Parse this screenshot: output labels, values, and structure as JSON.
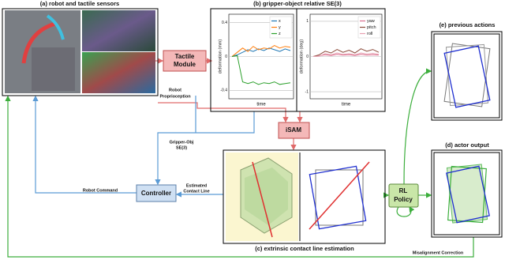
{
  "panels": {
    "a": {
      "title": "(a) robot and tactile sensors"
    },
    "b": {
      "title": "(b) gripper-object relative SE(3)"
    },
    "c": {
      "title": "(c) extrinsic contact line estimation"
    },
    "d": {
      "title": "(d) actor output"
    },
    "e": {
      "title": "(e) previous actions"
    }
  },
  "blocks": {
    "tactile_module": [
      "Tactile",
      "Module"
    ],
    "isam": "iSAM",
    "controller": "Controller",
    "rl_policy": [
      "RL",
      "Policy"
    ]
  },
  "edge_labels": {
    "robot_proprioception": [
      "Robot",
      "Proprioception"
    ],
    "gripper_obj": [
      "Gripper-Obj",
      "SE(3)"
    ],
    "estimated_contact_line": [
      "Estimated",
      "Contact Line"
    ],
    "robot_command": "Robot Command",
    "misalignment_correction": "Misalignment Correction"
  },
  "chart_data": [
    {
      "type": "line",
      "xlabel": "time",
      "ylabel": "deformation (mm)",
      "ylim": [
        -0.5,
        0.5
      ],
      "yticks": [
        0.4,
        0,
        -0.4
      ],
      "grid": true,
      "series": [
        {
          "name": "x",
          "color": "#1f77b4",
          "values": [
            0.0,
            0.02,
            0.05,
            0.08,
            0.06,
            0.09,
            0.07,
            0.1,
            0.08,
            0.06,
            0.09,
            0.07
          ]
        },
        {
          "name": "y",
          "color": "#ff7f0e",
          "values": [
            0.0,
            0.05,
            0.1,
            0.06,
            0.12,
            0.08,
            0.1,
            0.09,
            0.13,
            0.1,
            0.12,
            0.11
          ]
        },
        {
          "name": "z",
          "color": "#2ca02c",
          "values": [
            0.0,
            0.01,
            -0.3,
            -0.32,
            -0.3,
            -0.33,
            -0.31,
            -0.32,
            -0.3,
            -0.33,
            -0.32,
            -0.31
          ]
        }
      ]
    },
    {
      "type": "line",
      "xlabel": "time",
      "ylabel": "deformation (deg)",
      "ylim": [
        -1.2,
        1.2
      ],
      "yticks": [
        1,
        0,
        -1
      ],
      "grid": true,
      "series": [
        {
          "name": "yaw",
          "color": "#d9708f",
          "values": [
            0.0,
            0.02,
            0.05,
            0.03,
            0.06,
            0.04,
            0.05,
            0.03,
            0.06,
            0.04,
            0.05,
            0.04
          ]
        },
        {
          "name": "pitch",
          "color": "#8b4a3a",
          "values": [
            0.0,
            0.05,
            0.15,
            0.1,
            0.2,
            0.12,
            0.18,
            0.1,
            0.22,
            0.15,
            0.2,
            0.12
          ]
        },
        {
          "name": "roll",
          "color": "#e8a0b0",
          "values": [
            0.0,
            0.01,
            0.08,
            0.05,
            0.1,
            0.06,
            0.08,
            0.05,
            0.1,
            0.07,
            0.09,
            0.06
          ]
        }
      ]
    }
  ]
}
